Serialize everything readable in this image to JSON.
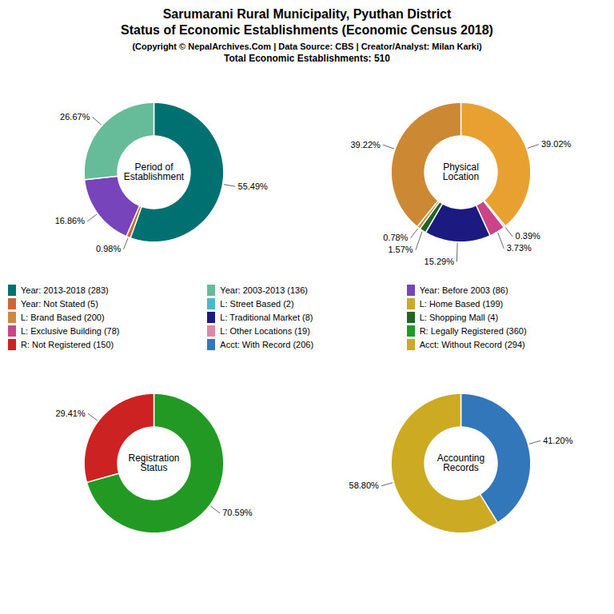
{
  "title": "Sarumarani Rural Municipality, Pyuthan District\nStatus of Economic Establishments (Economic Census 2018)",
  "subtitle": "(Copyright © NepalArchives.Com | Data Source: CBS | Creator/Analyst: Milan Karki)",
  "annotations": [
    "Total Economic Establishments: 510"
  ],
  "legend_items": [
    {
      "name": "Year: 2013-2018 (283)",
      "color": "#007070"
    },
    {
      "name": "Year: 2003-2013 (136)",
      "color": "#66bb99"
    },
    {
      "name": "Year: Before 2003 (86)",
      "color": "#7744bb"
    },
    {
      "name": "Year: Not Stated (5)",
      "color": "#cc6633"
    },
    {
      "name": "L: Street Based (2)",
      "color": "#44bbcc"
    },
    {
      "name": "L: Home Based (199)",
      "color": "#ccaa22"
    },
    {
      "name": "L: Brand Based (200)",
      "color": "#cc8844"
    },
    {
      "name": "L: Traditional Market (8)",
      "color": "#1a1a80"
    },
    {
      "name": "L: Shopping Mall (4)",
      "color": "#226622"
    },
    {
      "name": "L: Exclusive Building (78)",
      "color": "#cc4488"
    },
    {
      "name": "L: Other Locations (19)",
      "color": "#dd88aa"
    },
    {
      "name": "R: Legally Registered (360)",
      "color": "#229922"
    },
    {
      "name": "R: Not Registered (150)",
      "color": "#cc2222"
    },
    {
      "name": "Acct: With Record (206)",
      "color": "#3377bb"
    },
    {
      "name": "Acct: Without Record (294)",
      "color": "#ccaa22"
    }
  ],
  "chart_data": [
    {
      "type": "pie",
      "title": "Period of\nEstablishment",
      "values": [
        55.49,
        0.98,
        16.86,
        26.67
      ],
      "value_labels": [
        "55.49%",
        "0.98%",
        "16.86%",
        "26.67%"
      ],
      "colors": [
        "#007070",
        "#cc6633",
        "#7744bb",
        "#66bb99"
      ],
      "data_labels": true
    },
    {
      "type": "pie",
      "title": "Physical\nLocation",
      "values": [
        39.02,
        0.39,
        3.73,
        15.29,
        1.57,
        0.78,
        39.22
      ],
      "value_labels": [
        "39.02%",
        "0.39%",
        "3.73%",
        "15.29%",
        "1.57%",
        "0.78%",
        "39.22%"
      ],
      "colors": [
        "#e8a030",
        "#44bbcc",
        "#cc4488",
        "#1a1a80",
        "#226622",
        "#cc8844",
        "#cc8833"
      ],
      "data_labels": true
    },
    {
      "type": "pie",
      "title": "Registration\nStatus",
      "values": [
        70.59,
        29.41
      ],
      "value_labels": [
        "70.59%",
        "29.41%"
      ],
      "colors": [
        "#229922",
        "#cc2222"
      ],
      "data_labels": true
    },
    {
      "type": "pie",
      "title": "Accounting\nRecords",
      "values": [
        41.2,
        58.8
      ],
      "value_labels": [
        "41.20%",
        "58.80%"
      ],
      "colors": [
        "#3377bb",
        "#ccaa22"
      ],
      "data_labels": true
    }
  ]
}
